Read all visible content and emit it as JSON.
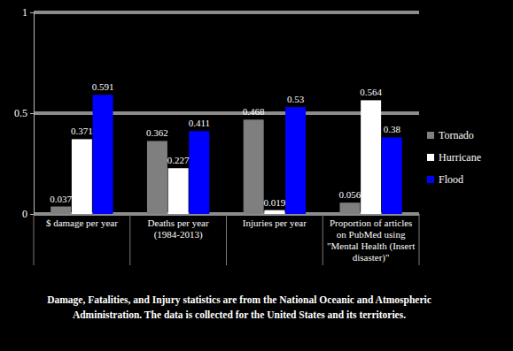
{
  "chart_data": {
    "type": "bar",
    "categories": [
      "$ damage per year",
      "Deaths per year (1984-2013)",
      "Injuries per year",
      "Proportion of articles on PubMed using \"Mental Health (Insert disaster)\""
    ],
    "series": [
      {
        "name": "Tornado",
        "color": "#7f7f7f",
        "values": [
          0.037,
          0.362,
          0.468,
          0.056
        ]
      },
      {
        "name": "Hurricane",
        "color": "#ffffff",
        "values": [
          0.371,
          0.227,
          0.019,
          0.564
        ]
      },
      {
        "name": "Flood",
        "color": "#0000ff",
        "values": [
          0.591,
          0.411,
          0.53,
          0.38
        ]
      }
    ],
    "ylim": [
      0,
      1
    ],
    "yticks": [
      0,
      0.5,
      1
    ],
    "grid": true,
    "legend": "right",
    "data_labels": true,
    "annotations": [
      "Damage, Fatalities, and Injury statistics are from the National Oceanic and Atmospheric Administration. The data is collected for the United States and its territories."
    ]
  }
}
